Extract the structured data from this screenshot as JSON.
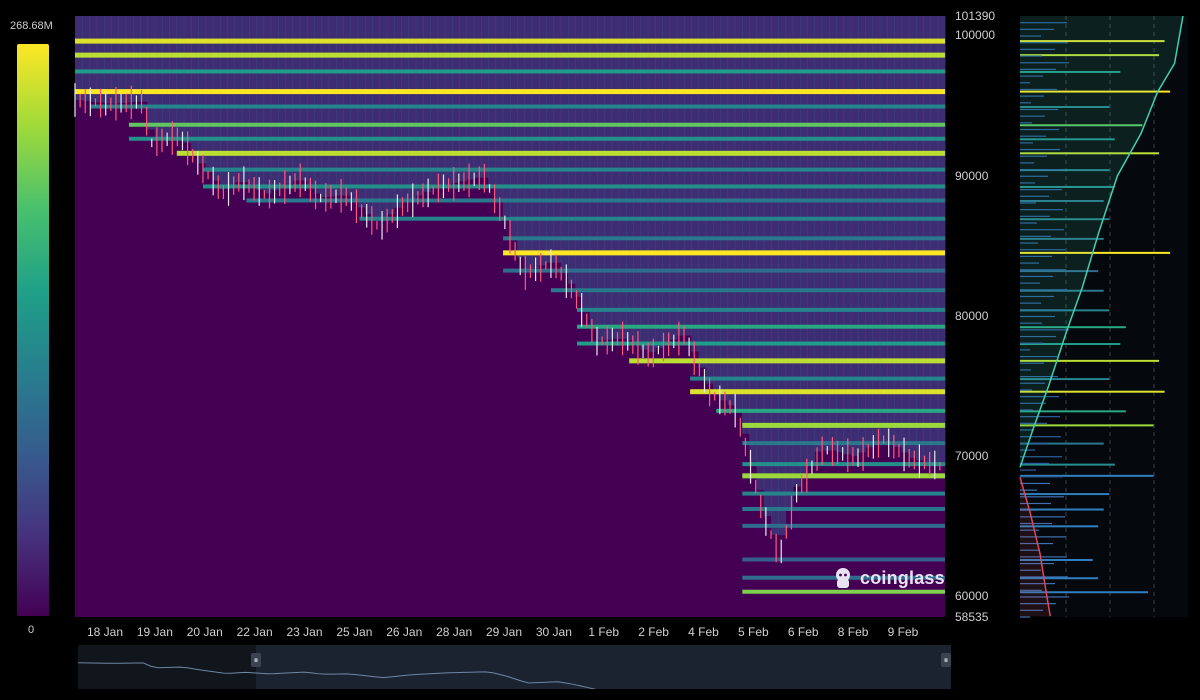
{
  "colorbar": {
    "max_label": "268.68M",
    "min_label": "0",
    "colors": [
      "#440154",
      "#46337e",
      "#365c8d",
      "#277f8e",
      "#1fa187",
      "#4ac16d",
      "#a0da39",
      "#fde725"
    ]
  },
  "watermark": {
    "text": "coinglass",
    "icon": "coinglass-mascot-icon"
  },
  "navigator": {
    "left_handle": "⏸",
    "right_handle": "⏸"
  },
  "chart_data": {
    "type": "heatmap",
    "title": "",
    "xlabel": "",
    "ylabel": "",
    "ylim": [
      58535,
      101390
    ],
    "y_range_labels": {
      "top": "101390",
      "bottom": "58535"
    },
    "y_ticks": [
      100000,
      90000,
      80000,
      70000,
      60000
    ],
    "y_tick_labels": [
      "100000",
      "90000",
      "80000",
      "70000",
      "60000"
    ],
    "x_tick_labels": [
      "18 Jan",
      "19 Jan",
      "20 Jan",
      "22 Jan",
      "23 Jan",
      "25 Jan",
      "26 Jan",
      "28 Jan",
      "29 Jan",
      "30 Jan",
      "1 Feb",
      "2 Feb",
      "4 Feb",
      "5 Feb",
      "6 Feb",
      "8 Feb",
      "9 Feb"
    ],
    "price_path": [
      {
        "t": 0.0,
        "p": 95400
      },
      {
        "t": 0.04,
        "p": 95100
      },
      {
        "t": 0.08,
        "p": 95300
      },
      {
        "t": 0.085,
        "p": 92300
      },
      {
        "t": 0.12,
        "p": 92800
      },
      {
        "t": 0.14,
        "p": 91000
      },
      {
        "t": 0.17,
        "p": 88800
      },
      {
        "t": 0.19,
        "p": 89600
      },
      {
        "t": 0.22,
        "p": 88600
      },
      {
        "t": 0.26,
        "p": 89700
      },
      {
        "t": 0.28,
        "p": 88400
      },
      {
        "t": 0.31,
        "p": 88600
      },
      {
        "t": 0.35,
        "p": 86300
      },
      {
        "t": 0.38,
        "p": 88000
      },
      {
        "t": 0.42,
        "p": 89200
      },
      {
        "t": 0.47,
        "p": 89900
      },
      {
        "t": 0.49,
        "p": 87400
      },
      {
        "t": 0.515,
        "p": 83000
      },
      {
        "t": 0.55,
        "p": 83800
      },
      {
        "t": 0.57,
        "p": 82000
      },
      {
        "t": 0.6,
        "p": 78200
      },
      {
        "t": 0.63,
        "p": 78400
      },
      {
        "t": 0.66,
        "p": 77200
      },
      {
        "t": 0.7,
        "p": 78600
      },
      {
        "t": 0.73,
        "p": 74500
      },
      {
        "t": 0.76,
        "p": 73200
      },
      {
        "t": 0.79,
        "p": 66000
      },
      {
        "t": 0.81,
        "p": 62800
      },
      {
        "t": 0.83,
        "p": 67500
      },
      {
        "t": 0.86,
        "p": 70500
      },
      {
        "t": 0.9,
        "p": 69900
      },
      {
        "t": 0.93,
        "p": 71200
      },
      {
        "t": 0.96,
        "p": 69800
      },
      {
        "t": 1.0,
        "p": 69200
      }
    ],
    "bands": [
      {
        "p": 99600,
        "level": 0.95
      },
      {
        "p": 98600,
        "level": 0.9
      },
      {
        "p": 97400,
        "level": 0.55
      },
      {
        "p": 96000,
        "level": 1.0
      },
      {
        "p": 94900,
        "level": 0.45
      },
      {
        "p": 93600,
        "level": 0.75
      },
      {
        "p": 92600,
        "level": 0.5
      },
      {
        "p": 91600,
        "level": 0.9
      },
      {
        "p": 90400,
        "level": 0.45
      },
      {
        "p": 89200,
        "level": 0.5
      },
      {
        "p": 88200,
        "level": 0.4
      },
      {
        "p": 86900,
        "level": 0.45
      },
      {
        "p": 85500,
        "level": 0.4
      },
      {
        "p": 84500,
        "level": 1.0
      },
      {
        "p": 83200,
        "level": 0.35
      },
      {
        "p": 81800,
        "level": 0.4
      },
      {
        "p": 80400,
        "level": 0.45
      },
      {
        "p": 79200,
        "level": 0.6
      },
      {
        "p": 78000,
        "level": 0.55
      },
      {
        "p": 76800,
        "level": 0.9
      },
      {
        "p": 75500,
        "level": 0.45
      },
      {
        "p": 74600,
        "level": 0.95
      },
      {
        "p": 73200,
        "level": 0.6
      },
      {
        "p": 72200,
        "level": 0.85
      },
      {
        "p": 70900,
        "level": 0.4
      },
      {
        "p": 69400,
        "level": 0.5
      },
      {
        "p": 68600,
        "level": 0.85
      },
      {
        "p": 67300,
        "level": 0.45
      },
      {
        "p": 66200,
        "level": 0.4
      },
      {
        "p": 65000,
        "level": 0.35
      },
      {
        "p": 62600,
        "level": 0.3
      },
      {
        "p": 61300,
        "level": 0.35
      },
      {
        "p": 60300,
        "level": 0.8
      }
    ],
    "profile_cumulative": {
      "upper": [
        {
          "p": 101390,
          "v": 0.97
        },
        {
          "p": 98000,
          "v": 0.92
        },
        {
          "p": 96000,
          "v": 0.82
        },
        {
          "p": 93000,
          "v": 0.72
        },
        {
          "p": 90000,
          "v": 0.58
        },
        {
          "p": 86000,
          "v": 0.47
        },
        {
          "p": 82000,
          "v": 0.37
        },
        {
          "p": 79000,
          "v": 0.28
        },
        {
          "p": 75000,
          "v": 0.17
        },
        {
          "p": 72000,
          "v": 0.08
        },
        {
          "p": 69200,
          "v": 0.0
        }
      ],
      "lower": [
        {
          "p": 68500,
          "v": 0.0
        },
        {
          "p": 66000,
          "v": 0.06
        },
        {
          "p": 63000,
          "v": 0.12
        },
        {
          "p": 60000,
          "v": 0.16
        },
        {
          "p": 58600,
          "v": 0.18
        }
      ]
    }
  }
}
